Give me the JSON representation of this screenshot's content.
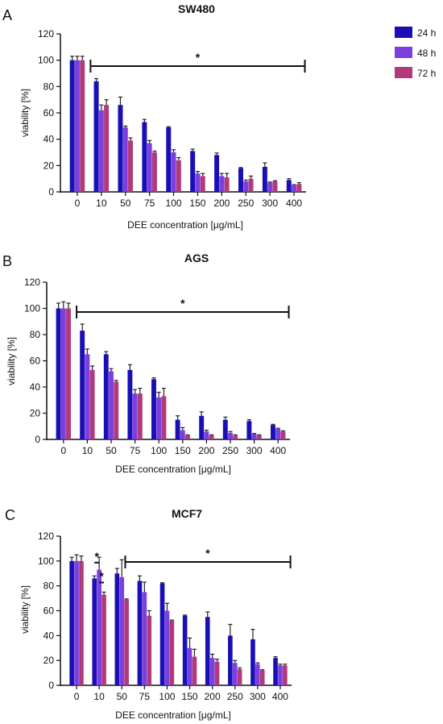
{
  "panels": [
    "A",
    "B",
    "C"
  ],
  "colors": {
    "24 h": "#1a0fb4",
    "48 h": "#7b3fe0",
    "72 h": "#b03a7a"
  },
  "chart_data": [
    {
      "type": "bar",
      "title": "SW480",
      "xlabel": "DEE concentration [μg/mL]",
      "ylabel": "viability [%]",
      "categories": [
        "0",
        "10",
        "50",
        "75",
        "100",
        "150",
        "200",
        "250",
        "300",
        "400"
      ],
      "ylim": [
        0,
        120
      ],
      "yticks": [
        "0",
        "20",
        "40",
        "60",
        "80",
        "100",
        "120"
      ],
      "series": [
        {
          "name": "24 h",
          "values": [
            100,
            84,
            66,
            53,
            49,
            31,
            28,
            18,
            19,
            9
          ],
          "errors": [
            3,
            2,
            6,
            2,
            0.5,
            1.5,
            1.5,
            0.5,
            3,
            1
          ]
        },
        {
          "name": "48 h",
          "values": [
            100,
            62,
            49,
            37,
            30,
            14,
            12,
            8,
            7,
            5
          ],
          "errors": [
            3,
            4,
            1,
            2,
            2,
            1.5,
            2,
            1,
            0.5,
            0.5
          ]
        },
        {
          "name": "72 h",
          "values": [
            100,
            66,
            39,
            30,
            24,
            12,
            11,
            10,
            8,
            6
          ],
          "errors": [
            3,
            4,
            2,
            1,
            2,
            2,
            3,
            2,
            0.5,
            1
          ]
        }
      ],
      "significance": {
        "label": "*",
        "from": "10",
        "to": "400"
      }
    },
    {
      "type": "bar",
      "title": "AGS",
      "xlabel": "DEE concentration [μg/mL]",
      "ylabel": "viability [%]",
      "categories": [
        "0",
        "10",
        "50",
        "75",
        "100",
        "150",
        "200",
        "250",
        "300",
        "400"
      ],
      "ylim": [
        0,
        120
      ],
      "yticks": [
        "0",
        "20",
        "40",
        "60",
        "80",
        "100",
        "120"
      ],
      "series": [
        {
          "name": "24 h",
          "values": [
            100,
            83,
            65,
            53,
            46,
            15,
            18,
            15,
            14,
            11
          ],
          "errors": [
            4,
            5,
            2,
            4,
            1,
            3,
            3,
            2,
            1,
            0.5
          ]
        },
        {
          "name": "48 h",
          "values": [
            100,
            65,
            52,
            35,
            32,
            7,
            6,
            5,
            4,
            8
          ],
          "errors": [
            5,
            4,
            2,
            3,
            4,
            2,
            1,
            1,
            0.5,
            0.5
          ]
        },
        {
          "name": "72 h",
          "values": [
            100,
            53,
            44,
            35,
            33,
            3,
            3,
            3,
            3,
            6
          ],
          "errors": [
            4,
            3,
            1,
            4,
            6,
            0.5,
            0.5,
            0.5,
            0.5,
            0.5
          ]
        }
      ],
      "significance": {
        "label": "*",
        "from": "10",
        "to": "400"
      }
    },
    {
      "type": "bar",
      "title": "MCF7",
      "xlabel": "DEE concentration [μg/mL]",
      "ylabel": "viability [%]",
      "categories": [
        "0",
        "10",
        "50",
        "75",
        "100",
        "150",
        "200",
        "250",
        "300",
        "400"
      ],
      "ylim": [
        0,
        120
      ],
      "yticks": [
        "0",
        "20",
        "40",
        "60",
        "80",
        "100",
        "120"
      ],
      "series": [
        {
          "name": "24 h",
          "values": [
            100,
            86,
            90,
            84,
            82,
            56,
            55,
            40,
            37,
            22
          ],
          "errors": [
            3,
            2,
            4,
            4,
            0.5,
            0.5,
            4,
            9,
            8,
            1
          ]
        },
        {
          "name": "48 h",
          "values": [
            100,
            93,
            87,
            75,
            60,
            30,
            22,
            18,
            17,
            16
          ],
          "errors": [
            5,
            10,
            14,
            8,
            6,
            8,
            3,
            2,
            1,
            1
          ]
        },
        {
          "name": "72 h",
          "values": [
            100,
            73,
            69,
            56,
            52,
            23,
            19,
            13,
            12,
            16
          ],
          "errors": [
            4,
            2,
            0.5,
            4,
            0.5,
            6,
            2,
            1,
            0.5,
            1
          ]
        }
      ],
      "significance": {
        "label": "*",
        "from": "50",
        "to": "400"
      },
      "pairwise": [
        {
          "label": "*",
          "category": "10",
          "a": "24 h",
          "b": "48 h"
        },
        {
          "label": "*",
          "category": "10",
          "a": "48 h",
          "b": "72 h"
        }
      ]
    }
  ]
}
